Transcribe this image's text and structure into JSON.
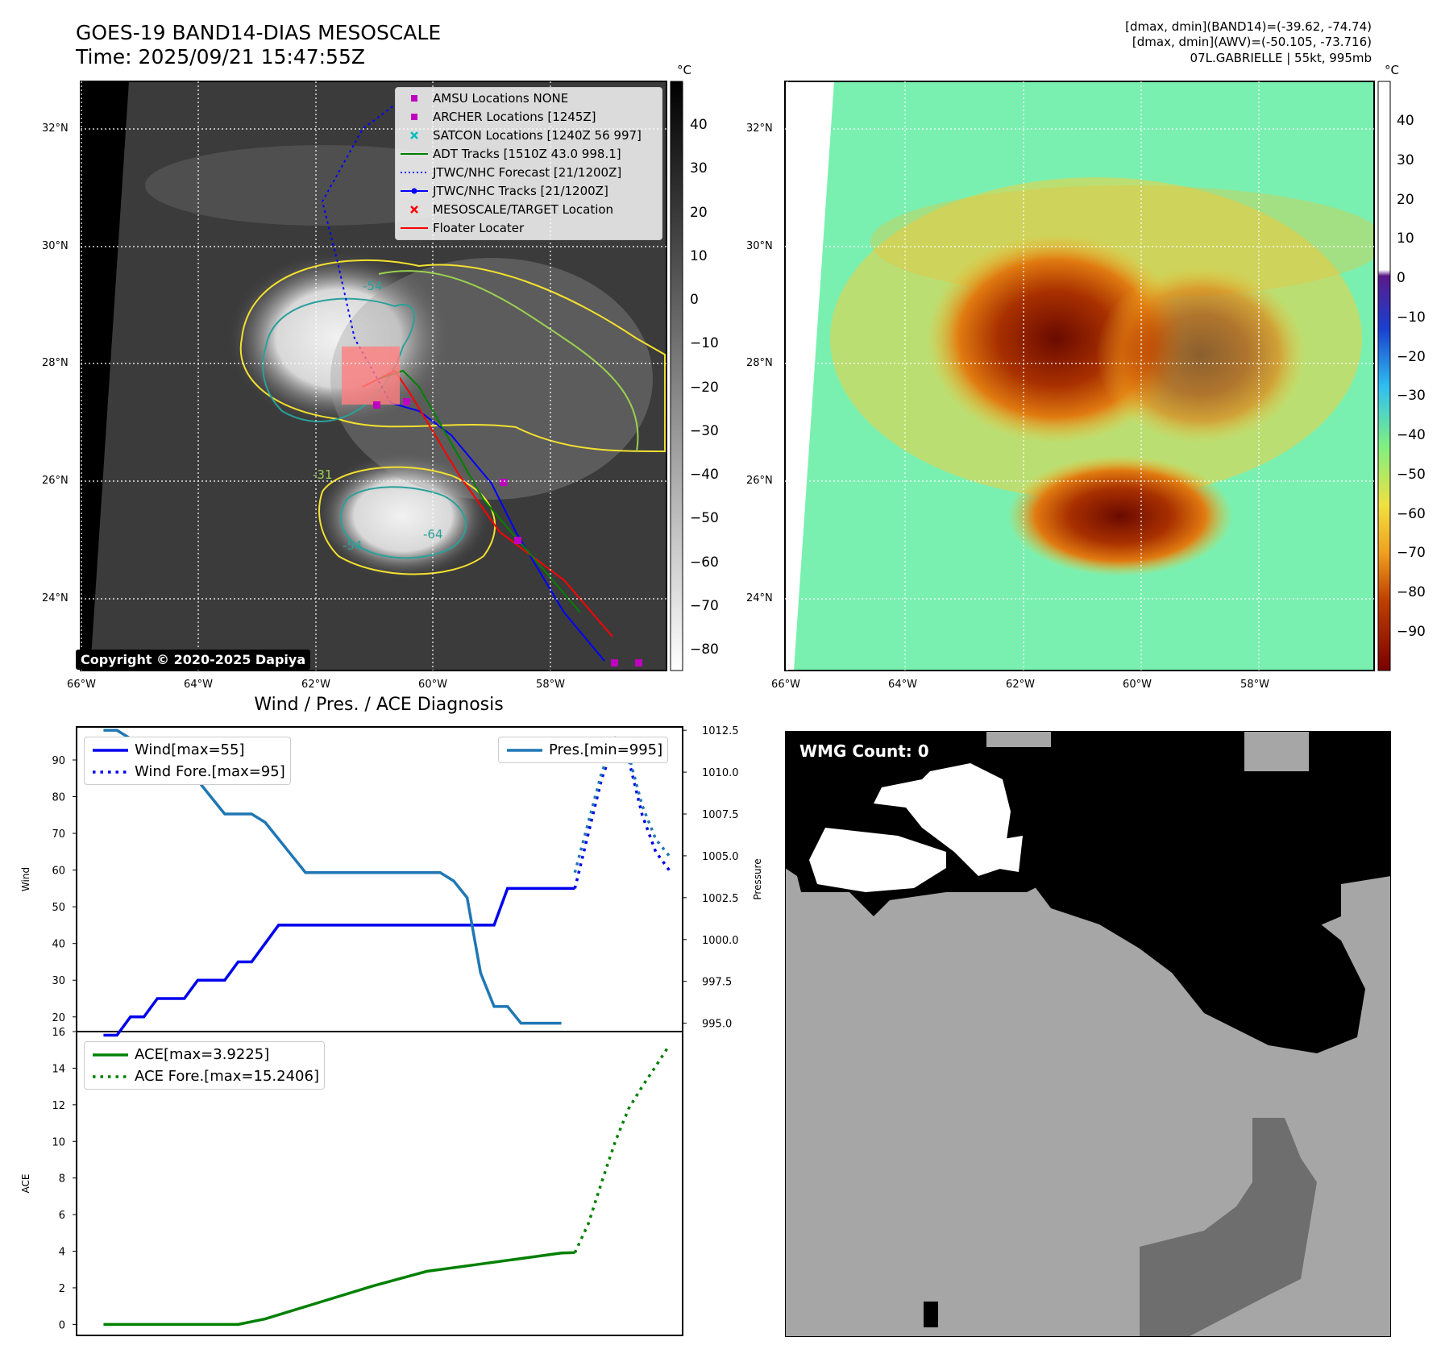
{
  "header": {
    "title_line1": "GOES-19 BAND14-DIAS MESOSCALE",
    "title_line2": "Time: 2025/09/21 15:47:55Z",
    "info_line1": "[dmax, dmin](BAND14)=(-39.62, -74.74)",
    "info_line2": "[dmax, dmin](AWV)=(-50.105, -73.716)",
    "info_line3": "07L.GABRIELLE | 55kt, 995mb"
  },
  "map_axes": {
    "lon_ticks": [
      "66°W",
      "64°W",
      "62°W",
      "60°W",
      "58°W"
    ],
    "lat_ticks": [
      "32°N",
      "30°N",
      "28°N",
      "26°N",
      "24°N"
    ]
  },
  "ir_map": {
    "legend": [
      {
        "label": "AMSU Locations NONE",
        "symbol": "square",
        "color": "#c000c0"
      },
      {
        "label": "ARCHER Locations [1245Z]",
        "symbol": "square",
        "color": "#c000c0"
      },
      {
        "label": "SATCON Locations [1240Z 56 997]",
        "symbol": "x",
        "color": "#00bfbf"
      },
      {
        "label": "ADT Tracks [1510Z 43.0 998.1]",
        "symbol": "line",
        "color": "#008000"
      },
      {
        "label": "JTWC/NHC Forecast [21/1200Z]",
        "symbol": "dotted",
        "color": "#0000ff"
      },
      {
        "label": "JTWC/NHC Tracks [21/1200Z]",
        "symbol": "line-dot",
        "color": "#0000ff"
      },
      {
        "label": "MESOSCALE/TARGET Location",
        "symbol": "x",
        "color": "#ff0000"
      },
      {
        "label": "Floater Locater",
        "symbol": "line",
        "color": "#ff0000"
      }
    ],
    "contour_labels": [
      "-54",
      "-54",
      "-64",
      "-31"
    ],
    "copyright": "Copyright © 2020-2025 Dapiya",
    "colorbar_unit": "°C",
    "colorbar_ticks": [
      "40",
      "30",
      "20",
      "10",
      "0",
      "−10",
      "−20",
      "−30",
      "−40",
      "−50",
      "−60",
      "−70",
      "−80"
    ]
  },
  "awv_map": {
    "colorbar_unit": "°C",
    "colorbar_ticks": [
      "40",
      "30",
      "20",
      "10",
      "0",
      "−10",
      "−20",
      "−30",
      "−40",
      "−50",
      "−60",
      "−70",
      "−80",
      "−90"
    ]
  },
  "wmg_panel": {
    "label": "WMG Count: 0",
    "colors": {
      "dark": "#000000",
      "light": "#a6a6a6",
      "mid": "#6e6e6e",
      "white": "#ffffff"
    }
  },
  "diagnosis_title": "Wind / Pres. / ACE Diagnosis",
  "chart_data": [
    {
      "type": "line",
      "title": "Wind / Pres. / ACE Diagnosis",
      "ylabel": "Wind",
      "y2label": "Pressure",
      "ylim": [
        16,
        99
      ],
      "y2lim": [
        994.5,
        1012.7
      ],
      "y_ticks": [
        20,
        30,
        40,
        50,
        60,
        70,
        80,
        90
      ],
      "y2_ticks": [
        "995.0",
        "997.5",
        "1000.0",
        "1002.5",
        "1005.0",
        "1007.5",
        "1010.0",
        "1012.5"
      ],
      "xlim": [
        0,
        45
      ],
      "series": [
        {
          "name": "Wind[max=55]",
          "axis": "left",
          "color": "#0000ee",
          "style": "solid",
          "x": [
            2,
            3,
            4,
            5,
            6,
            7,
            8,
            9,
            10,
            11,
            12,
            13,
            14,
            15,
            16,
            17,
            18,
            19,
            20,
            21,
            22,
            23,
            24,
            25,
            26,
            27,
            28,
            29,
            30,
            31,
            32,
            33,
            34,
            35,
            36,
            37
          ],
          "values": [
            15,
            15,
            20,
            20,
            25,
            25,
            25,
            30,
            30,
            30,
            35,
            35,
            40,
            45,
            45,
            45,
            45,
            45,
            45,
            45,
            45,
            45,
            45,
            45,
            45,
            45,
            45,
            45,
            45,
            45,
            55,
            55,
            55,
            55,
            55,
            55
          ]
        },
        {
          "name": "Wind Fore.[max=95]",
          "axis": "left",
          "color": "#0000ee",
          "style": "dotted",
          "x": [
            37,
            38,
            39,
            40,
            41,
            42,
            43,
            44
          ],
          "values": [
            55,
            70,
            85,
            95,
            90,
            75,
            65,
            60
          ]
        },
        {
          "name": "Pres.[min=995]",
          "axis": "right",
          "color": "#1f77b4",
          "style": "solid",
          "x": [
            2,
            3,
            4,
            5,
            6,
            7,
            8,
            9,
            10,
            11,
            12,
            13,
            14,
            15,
            16,
            17,
            18,
            19,
            20,
            21,
            22,
            23,
            24,
            25,
            26,
            27,
            28,
            29,
            30,
            31,
            32,
            33,
            34,
            35,
            36
          ],
          "values": [
            1012.5,
            1012.5,
            1012,
            1011.5,
            1011,
            1010,
            1010,
            1009.5,
            1008.5,
            1007.5,
            1007.5,
            1007.5,
            1007,
            1006,
            1005,
            1004,
            1004,
            1004,
            1004,
            1004,
            1004,
            1004,
            1004,
            1004,
            1004,
            1004,
            1003.5,
            1002.5,
            998,
            996,
            996,
            995,
            995,
            995,
            995
          ]
        },
        {
          "name": "Pres.[min=995] fc",
          "axis": "right",
          "color": "#1f77b4",
          "style": "dotted",
          "x": [
            37,
            38,
            39,
            40,
            41,
            42,
            43,
            44
          ],
          "values": [
            1004,
            1007,
            1010,
            1012,
            1011,
            1008,
            1006,
            1005
          ]
        }
      ]
    },
    {
      "type": "line",
      "ylabel": "ACE",
      "ylim": [
        -0.6,
        16
      ],
      "y_ticks": [
        0,
        2,
        4,
        6,
        8,
        10,
        12,
        14,
        16
      ],
      "xlim": [
        0,
        45
      ],
      "series": [
        {
          "name": "ACE[max=3.9225]",
          "color": "#008000",
          "style": "solid",
          "x": [
            2,
            8,
            12,
            14,
            18,
            22,
            26,
            30,
            33,
            36,
            37
          ],
          "values": [
            0,
            0,
            0,
            0.3,
            1.2,
            2.1,
            2.9,
            3.3,
            3.6,
            3.9,
            3.9225
          ]
        },
        {
          "name": "ACE Fore.[max=15.2406]",
          "color": "#008000",
          "style": "dotted",
          "x": [
            37,
            38,
            39,
            40,
            41,
            42,
            43,
            44
          ],
          "values": [
            3.9225,
            5.5,
            7.8,
            10.0,
            11.8,
            13.0,
            14.1,
            15.2406
          ]
        }
      ]
    }
  ]
}
